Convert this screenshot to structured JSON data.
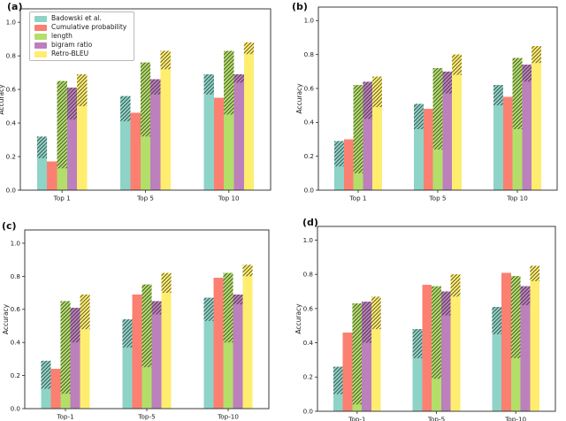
{
  "figure": {
    "background": "#ffffff",
    "axis_color": "#262626",
    "hatch_color": "#1a1a1a",
    "ylabel": "Accuracy",
    "ytick_labels": [
      "0.0",
      "0.2",
      "0.4",
      "0.6",
      "0.8",
      "1.0"
    ]
  },
  "legend": {
    "entries": [
      {
        "label": "Badowski et al.",
        "color": "#8dd3c7"
      },
      {
        "label": "Cumulative probability",
        "color": "#fb8072"
      },
      {
        "label": "length",
        "color": "#b3de69"
      },
      {
        "label": "bigram ratio",
        "color": "#bc80bd"
      },
      {
        "label": "Retro-BLEU",
        "color": "#ffed6f"
      }
    ]
  },
  "chart_data": [
    {
      "type": "bar",
      "panel_label": "(a)",
      "categories": [
        "Top 1",
        "Top 5",
        "Top 10"
      ],
      "xlabel": "",
      "ylabel": "Accuracy",
      "ylim": [
        0,
        1.08
      ],
      "yticks": [
        0.0,
        0.2,
        0.4,
        0.6,
        0.8,
        1.0
      ],
      "grid": false,
      "legend_position": "upper-left",
      "legend_visible": true,
      "bar_style": "solid bottom segment with hatched (///) top segment; total = full bar height",
      "series": [
        {
          "name": "Badowski et al.",
          "color": "#8dd3c7",
          "solid": [
            0.19,
            0.41,
            0.57
          ],
          "total": [
            0.32,
            0.56,
            0.69
          ]
        },
        {
          "name": "Cumulative probability",
          "color": "#fb8072",
          "solid": [
            0.17,
            0.46,
            0.55
          ],
          "total": [
            0.17,
            0.46,
            0.55
          ]
        },
        {
          "name": "length",
          "color": "#b3de69",
          "solid": [
            0.13,
            0.32,
            0.45
          ],
          "total": [
            0.65,
            0.76,
            0.83
          ]
        },
        {
          "name": "bigram ratio",
          "color": "#bc80bd",
          "solid": [
            0.42,
            0.57,
            0.64
          ],
          "total": [
            0.61,
            0.66,
            0.69
          ]
        },
        {
          "name": "Retro-BLEU",
          "color": "#ffed6f",
          "solid": [
            0.5,
            0.72,
            0.81
          ],
          "total": [
            0.69,
            0.83,
            0.88
          ]
        }
      ]
    },
    {
      "type": "bar",
      "panel_label": "(b)",
      "categories": [
        "Top 1",
        "Top 5",
        "Top 10"
      ],
      "xlabel": "",
      "ylabel": "Accuracy",
      "ylim": [
        0,
        1.08
      ],
      "yticks": [
        0.0,
        0.2,
        0.4,
        0.6,
        0.8,
        1.0
      ],
      "grid": false,
      "legend_visible": false,
      "series": [
        {
          "name": "Badowski et al.",
          "color": "#8dd3c7",
          "solid": [
            0.14,
            0.36,
            0.5
          ],
          "total": [
            0.29,
            0.51,
            0.62
          ]
        },
        {
          "name": "Cumulative probability",
          "color": "#fb8072",
          "solid": [
            0.3,
            0.48,
            0.55
          ],
          "total": [
            0.3,
            0.48,
            0.55
          ]
        },
        {
          "name": "length",
          "color": "#b3de69",
          "solid": [
            0.1,
            0.24,
            0.36
          ],
          "total": [
            0.62,
            0.72,
            0.78
          ]
        },
        {
          "name": "bigram ratio",
          "color": "#bc80bd",
          "solid": [
            0.42,
            0.57,
            0.64
          ],
          "total": [
            0.64,
            0.7,
            0.74
          ]
        },
        {
          "name": "Retro-BLEU",
          "color": "#ffed6f",
          "solid": [
            0.49,
            0.68,
            0.75
          ],
          "total": [
            0.67,
            0.8,
            0.85
          ]
        }
      ]
    },
    {
      "type": "bar",
      "panel_label": "(c)",
      "categories": [
        "Top-1",
        "Top-5",
        "Top-10"
      ],
      "xlabel": "",
      "ylabel": "Accuracy",
      "ylim": [
        0,
        1.08
      ],
      "yticks": [
        0.0,
        0.2,
        0.4,
        0.6,
        0.8,
        1.0
      ],
      "grid": false,
      "legend_visible": false,
      "series": [
        {
          "name": "Badowski et al.",
          "color": "#8dd3c7",
          "solid": [
            0.12,
            0.37,
            0.53
          ],
          "total": [
            0.29,
            0.54,
            0.67
          ]
        },
        {
          "name": "Cumulative probability",
          "color": "#fb8072",
          "solid": [
            0.24,
            0.69,
            0.79
          ],
          "total": [
            0.24,
            0.69,
            0.79
          ]
        },
        {
          "name": "length",
          "color": "#b3de69",
          "solid": [
            0.09,
            0.25,
            0.4
          ],
          "total": [
            0.65,
            0.75,
            0.82
          ]
        },
        {
          "name": "bigram ratio",
          "color": "#bc80bd",
          "solid": [
            0.4,
            0.57,
            0.63
          ],
          "total": [
            0.61,
            0.65,
            0.69
          ]
        },
        {
          "name": "Retro-BLEU",
          "color": "#ffed6f",
          "solid": [
            0.48,
            0.7,
            0.8
          ],
          "total": [
            0.69,
            0.82,
            0.87
          ]
        }
      ]
    },
    {
      "type": "bar",
      "panel_label": "(d)",
      "categories": [
        "Top-1",
        "Top-5",
        "Top-10"
      ],
      "xlabel": "",
      "ylabel": "Accuracy",
      "ylim": [
        0,
        1.08
      ],
      "yticks": [
        0.0,
        0.2,
        0.4,
        0.6,
        0.8,
        1.0
      ],
      "grid": false,
      "legend_visible": false,
      "series": [
        {
          "name": "Badowski et al.",
          "color": "#8dd3c7",
          "solid": [
            0.1,
            0.31,
            0.45
          ],
          "total": [
            0.26,
            0.48,
            0.61
          ]
        },
        {
          "name": "Cumulative probability",
          "color": "#fb8072",
          "solid": [
            0.46,
            0.74,
            0.81
          ],
          "total": [
            0.46,
            0.74,
            0.81
          ]
        },
        {
          "name": "length",
          "color": "#b3de69",
          "solid": [
            0.04,
            0.19,
            0.31
          ],
          "total": [
            0.63,
            0.73,
            0.79
          ]
        },
        {
          "name": "bigram ratio",
          "color": "#bc80bd",
          "solid": [
            0.4,
            0.56,
            0.62
          ],
          "total": [
            0.64,
            0.7,
            0.73
          ]
        },
        {
          "name": "Retro-BLEU",
          "color": "#ffed6f",
          "solid": [
            0.48,
            0.67,
            0.76
          ],
          "total": [
            0.67,
            0.8,
            0.85
          ]
        }
      ]
    }
  ]
}
